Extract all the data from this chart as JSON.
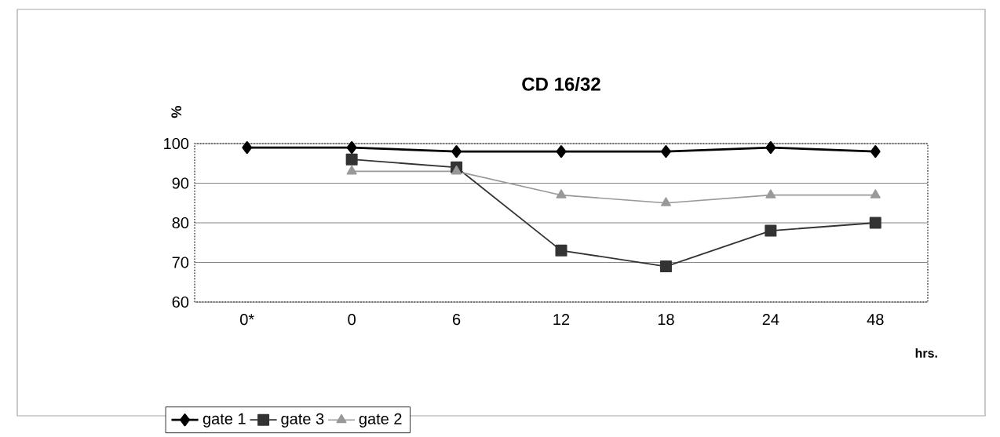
{
  "chart_data": {
    "type": "line",
    "title": "CD 16/32",
    "ylabel": "%",
    "xlabel": "hrs.",
    "categories": [
      "0*",
      "0",
      "6",
      "12",
      "18",
      "24",
      "48"
    ],
    "series": [
      {
        "name": "gate 1",
        "color": "#000000",
        "marker": "diamond",
        "values": [
          99,
          99,
          98,
          98,
          98,
          99,
          98
        ]
      },
      {
        "name": "gate 3",
        "color": "#333333",
        "marker": "square",
        "values": [
          null,
          96,
          94,
          73,
          69,
          78,
          80
        ]
      },
      {
        "name": "gate 2",
        "color": "#999999",
        "marker": "triangle",
        "values": [
          null,
          93,
          93,
          87,
          85,
          87,
          87
        ]
      }
    ],
    "ylim": [
      60,
      100
    ],
    "yticks": [
      60,
      70,
      80,
      90,
      100
    ],
    "grid": "y",
    "legend": "bottom left"
  }
}
